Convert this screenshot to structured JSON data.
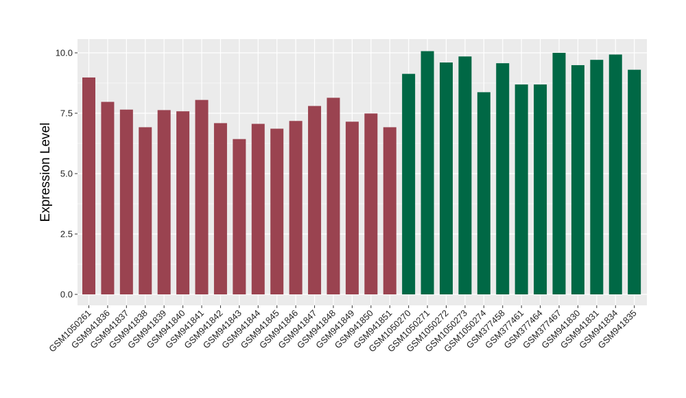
{
  "chart_data": {
    "type": "bar",
    "title": "",
    "xlabel": "",
    "ylabel": "Expression Level",
    "ylim": [
      0,
      10.1
    ],
    "yticks": [
      "0.0",
      "2.5",
      "5.0",
      "7.5",
      "10.0"
    ],
    "grid": true,
    "categories": [
      "GSM1050261",
      "GSM941836",
      "GSM941837",
      "GSM941838",
      "GSM941839",
      "GSM941840",
      "GSM941841",
      "GSM941842",
      "GSM941843",
      "GSM941844",
      "GSM941845",
      "GSM941846",
      "GSM941847",
      "GSM941848",
      "GSM941849",
      "GSM941850",
      "GSM941851",
      "GSM1050270",
      "GSM1050271",
      "GSM1050272",
      "GSM1050273",
      "GSM1050274",
      "GSM377458",
      "GSM377461",
      "GSM377464",
      "GSM377467",
      "GSM941830",
      "GSM941831",
      "GSM941834",
      "GSM941835"
    ],
    "values": [
      8.98,
      7.97,
      7.65,
      6.92,
      7.63,
      7.58,
      8.05,
      7.09,
      6.43,
      7.06,
      6.86,
      7.18,
      7.8,
      8.14,
      7.15,
      7.49,
      6.92,
      9.13,
      10.07,
      9.6,
      9.85,
      8.37,
      9.57,
      8.69,
      8.69,
      10.0,
      9.49,
      9.71,
      9.93,
      9.3
    ],
    "group_colors": [
      "#9a4350",
      "#9a4350",
      "#9a4350",
      "#9a4350",
      "#9a4350",
      "#9a4350",
      "#9a4350",
      "#9a4350",
      "#9a4350",
      "#9a4350",
      "#9a4350",
      "#9a4350",
      "#9a4350",
      "#9a4350",
      "#9a4350",
      "#9a4350",
      "#9a4350",
      "#006845",
      "#006845",
      "#006845",
      "#006845",
      "#006845",
      "#006845",
      "#006845",
      "#006845",
      "#006845",
      "#006845",
      "#006845",
      "#006845",
      "#006845"
    ],
    "panel_background": "#ebebeb",
    "gridline_color": "#ffffff"
  }
}
